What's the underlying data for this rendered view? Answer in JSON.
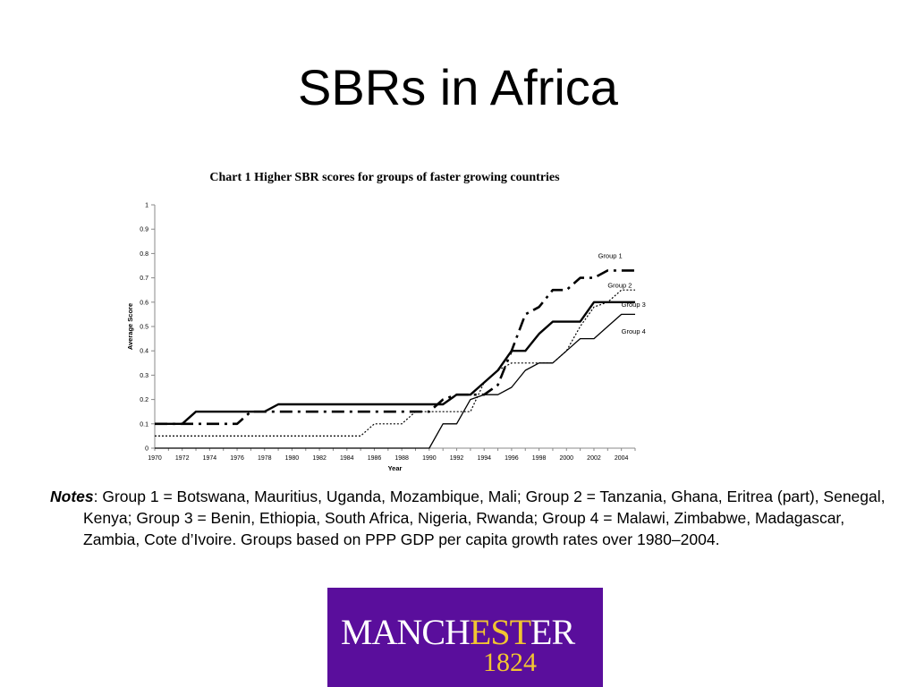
{
  "slide": {
    "title": "SBRs in Africa"
  },
  "chart_data": {
    "type": "line",
    "title": "Chart 1 Higher SBR scores for groups of faster growing countries",
    "xlabel": "Year",
    "ylabel": "Average Score",
    "xlim": [
      1970,
      2005
    ],
    "ylim": [
      0,
      1
    ],
    "x_ticks": [
      1970,
      1972,
      1974,
      1976,
      1978,
      1980,
      1982,
      1984,
      1986,
      1988,
      1990,
      1992,
      1994,
      1996,
      1998,
      2000,
      2002,
      2004
    ],
    "y_ticks": [
      0,
      0.1,
      0.2,
      0.3,
      0.4,
      0.5,
      0.6,
      0.7,
      0.8,
      0.9,
      1
    ],
    "x": [
      1970,
      1971,
      1972,
      1973,
      1974,
      1975,
      1976,
      1977,
      1978,
      1979,
      1980,
      1981,
      1982,
      1983,
      1984,
      1985,
      1986,
      1987,
      1988,
      1989,
      1990,
      1991,
      1992,
      1993,
      1994,
      1995,
      1996,
      1997,
      1998,
      1999,
      2000,
      2001,
      2002,
      2003,
      2004,
      2005
    ],
    "grid": false,
    "legend": "none",
    "series": [
      {
        "name": "Group 1",
        "style": "dash-dot",
        "width": 2.6,
        "values": [
          0.1,
          0.1,
          0.1,
          0.1,
          0.1,
          0.1,
          0.1,
          0.15,
          0.15,
          0.15,
          0.15,
          0.15,
          0.15,
          0.15,
          0.15,
          0.15,
          0.15,
          0.15,
          0.15,
          0.15,
          0.15,
          0.2,
          0.22,
          0.22,
          0.22,
          0.26,
          0.4,
          0.55,
          0.58,
          0.65,
          0.65,
          0.7,
          0.7,
          0.73,
          0.73,
          0.73
        ]
      },
      {
        "name": "Group 2",
        "style": "dotted",
        "width": 1.2,
        "values": [
          0.05,
          0.05,
          0.05,
          0.05,
          0.05,
          0.05,
          0.05,
          0.05,
          0.05,
          0.05,
          0.05,
          0.05,
          0.05,
          0.05,
          0.05,
          0.05,
          0.1,
          0.1,
          0.1,
          0.15,
          0.15,
          0.15,
          0.15,
          0.15,
          0.27,
          0.32,
          0.35,
          0.35,
          0.35,
          0.35,
          0.4,
          0.5,
          0.58,
          0.6,
          0.65,
          0.65
        ]
      },
      {
        "name": "Group 3",
        "style": "solid",
        "width": 2.4,
        "values": [
          0.1,
          0.1,
          0.1,
          0.15,
          0.15,
          0.15,
          0.15,
          0.15,
          0.15,
          0.18,
          0.18,
          0.18,
          0.18,
          0.18,
          0.18,
          0.18,
          0.18,
          0.18,
          0.18,
          0.18,
          0.18,
          0.18,
          0.22,
          0.22,
          0.27,
          0.32,
          0.4,
          0.4,
          0.47,
          0.52,
          0.52,
          0.52,
          0.6,
          0.6,
          0.6,
          0.6
        ]
      },
      {
        "name": "Group 4",
        "style": "solid",
        "width": 1.3,
        "values": [
          0,
          0,
          0,
          0,
          0,
          0,
          0,
          0,
          0,
          0,
          0,
          0,
          0,
          0,
          0,
          0,
          0,
          0,
          0,
          0,
          0,
          0.1,
          0.1,
          0.2,
          0.22,
          0.22,
          0.25,
          0.32,
          0.35,
          0.35,
          0.4,
          0.45,
          0.45,
          0.5,
          0.55,
          0.55
        ]
      }
    ],
    "series_label_positions": {
      "Group 1": [
        2002.3,
        0.79
      ],
      "Group 2": [
        2003.0,
        0.67
      ],
      "Group 3": [
        2004.0,
        0.59
      ],
      "Group 4": [
        2004.0,
        0.48
      ]
    }
  },
  "notes": {
    "label": "Notes",
    "text": ": Group 1 = Botswana, Mauritius, Uganda, Mozambique, Mali; Group 2 =  Tanzania, Ghana, Eritrea (part), Senegal, Kenya; Group 3 = Benin, Ethiopia, South Africa, Nigeria, Rwanda; Group 4 = Malawi, Zimbabwe, Madagascar, Zambia, Cote d’Ivoire. Groups based on PPP GDP per capita growth rates over 1980–2004."
  },
  "logo": {
    "word_a": "MANCH",
    "word_b": "EST",
    "word_c": "ER",
    "year": "1824",
    "background": "#5a0e9c",
    "accent": "#f2c531"
  }
}
